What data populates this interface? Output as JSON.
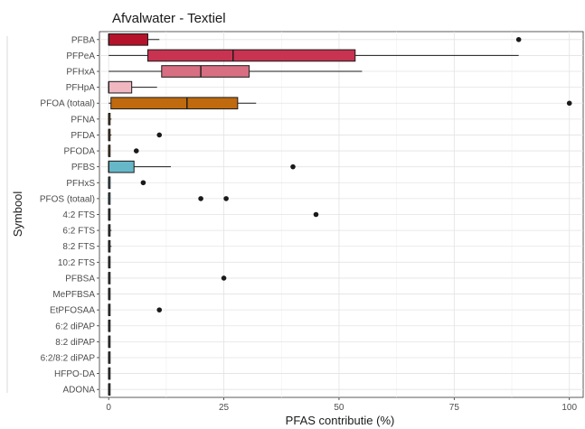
{
  "chart_data": {
    "type": "boxplot",
    "title": "Afvalwater - Textiel",
    "xlabel": "PFAS contributie (%)",
    "ylabel": "Symbool",
    "xlim": [
      -2,
      103
    ],
    "xticks": [
      0,
      25,
      50,
      75,
      100
    ],
    "grid": true,
    "categories": [
      "PFBA",
      "PFPeA",
      "PFHxA",
      "PFHpA",
      "PFOA (totaal)",
      "PFNA",
      "PFDA",
      "PFODA",
      "PFBS",
      "PFHxS",
      "PFOS (totaal)",
      "4:2 FTS",
      "6:2 FTS",
      "8:2 FTS",
      "10:2 FTS",
      "PFBSA",
      "MePFBSA",
      "EtPFOSAA",
      "6:2 diPAP",
      "8:2 diPAP",
      "6:2/8:2 diPAP",
      "HFPO-DA",
      "ADONA"
    ],
    "boxes": [
      {
        "label": "PFBA",
        "min": 0,
        "q1": 0,
        "median": 0,
        "q3": 8.5,
        "max": 11,
        "color": "#b5132b",
        "outliers": [
          89
        ]
      },
      {
        "label": "PFPeA",
        "min": 0,
        "q1": 8.5,
        "median": 27,
        "q3": 53.5,
        "max": 89,
        "color": "#c83351",
        "outliers": []
      },
      {
        "label": "PFHxA",
        "min": 0,
        "q1": 11.5,
        "median": 20,
        "q3": 30.5,
        "max": 55,
        "color": "#d86e82",
        "outliers": []
      },
      {
        "label": "PFHpA",
        "min": 0,
        "q1": 0,
        "median": 0,
        "q3": 5,
        "max": 10.5,
        "color": "#f0b7c0",
        "outliers": []
      },
      {
        "label": "PFOA (totaal)",
        "min": 0,
        "q1": 0.5,
        "median": 17,
        "q3": 28,
        "max": 32,
        "color": "#bf6a0f",
        "outliers": [
          100
        ]
      },
      {
        "label": "PFNA",
        "min": 0,
        "q1": 0,
        "median": 0,
        "q3": 0.3,
        "max": 0.6,
        "color": "#bf6a0f",
        "outliers": []
      },
      {
        "label": "PFDA",
        "min": 0,
        "q1": 0,
        "median": 0,
        "q3": 0.3,
        "max": 0.6,
        "color": "#bf6a0f",
        "outliers": [
          11
        ]
      },
      {
        "label": "PFODA",
        "min": 0,
        "q1": 0,
        "median": 0,
        "q3": 0,
        "max": 0,
        "color": "#bf6a0f",
        "outliers": [
          6
        ]
      },
      {
        "label": "PFBS",
        "min": 0,
        "q1": 0,
        "median": 0,
        "q3": 5.5,
        "max": 13.5,
        "color": "#66b8c9",
        "outliers": [
          40
        ]
      },
      {
        "label": "PFHxS",
        "min": 0,
        "q1": 0,
        "median": 0,
        "q3": 0,
        "max": 0,
        "color": "#66b8c9",
        "outliers": [
          7.5
        ]
      },
      {
        "label": "PFOS (totaal)",
        "min": 0,
        "q1": 0,
        "median": 0,
        "q3": 0,
        "max": 0,
        "color": "#66b8c9",
        "outliers": [
          20,
          25.5
        ]
      },
      {
        "label": "4:2 FTS",
        "min": 0,
        "q1": 0,
        "median": 0,
        "q3": 0,
        "max": 0,
        "color": "#666666",
        "outliers": [
          45
        ]
      },
      {
        "label": "6:2 FTS",
        "min": 0,
        "q1": 0,
        "median": 0,
        "q3": 0.3,
        "max": 0.6,
        "color": "#666666",
        "outliers": []
      },
      {
        "label": "8:2 FTS",
        "min": 0,
        "q1": 0,
        "median": 0,
        "q3": 0.3,
        "max": 0.6,
        "color": "#666666",
        "outliers": []
      },
      {
        "label": "10:2 FTS",
        "min": 0,
        "q1": 0,
        "median": 0,
        "q3": 0,
        "max": 0,
        "color": "#666666",
        "outliers": []
      },
      {
        "label": "PFBSA",
        "min": 0,
        "q1": 0,
        "median": 0,
        "q3": 0,
        "max": 0,
        "color": "#666666",
        "outliers": [
          25
        ]
      },
      {
        "label": "MePFBSA",
        "min": 0,
        "q1": 0,
        "median": 0,
        "q3": 0,
        "max": 0,
        "color": "#666666",
        "outliers": []
      },
      {
        "label": "EtPFOSAA",
        "min": 0,
        "q1": 0,
        "median": 0,
        "q3": 0,
        "max": 0,
        "color": "#666666",
        "outliers": [
          11
        ]
      },
      {
        "label": "6:2 diPAP",
        "min": 0,
        "q1": 0,
        "median": 0,
        "q3": 0,
        "max": 0,
        "color": "#666666",
        "outliers": []
      },
      {
        "label": "8:2 diPAP",
        "min": 0,
        "q1": 0,
        "median": 0,
        "q3": 0,
        "max": 0,
        "color": "#666666",
        "outliers": []
      },
      {
        "label": "6:2/8:2 diPAP",
        "min": 0,
        "q1": 0,
        "median": 0,
        "q3": 0,
        "max": 0,
        "color": "#666666",
        "outliers": []
      },
      {
        "label": "HFPO-DA",
        "min": 0,
        "q1": 0,
        "median": 0,
        "q3": 0,
        "max": 0,
        "color": "#666666",
        "outliers": []
      },
      {
        "label": "ADONA",
        "min": 0,
        "q1": 0,
        "median": 0,
        "q3": 0,
        "max": 0,
        "color": "#666666",
        "outliers": []
      }
    ]
  }
}
